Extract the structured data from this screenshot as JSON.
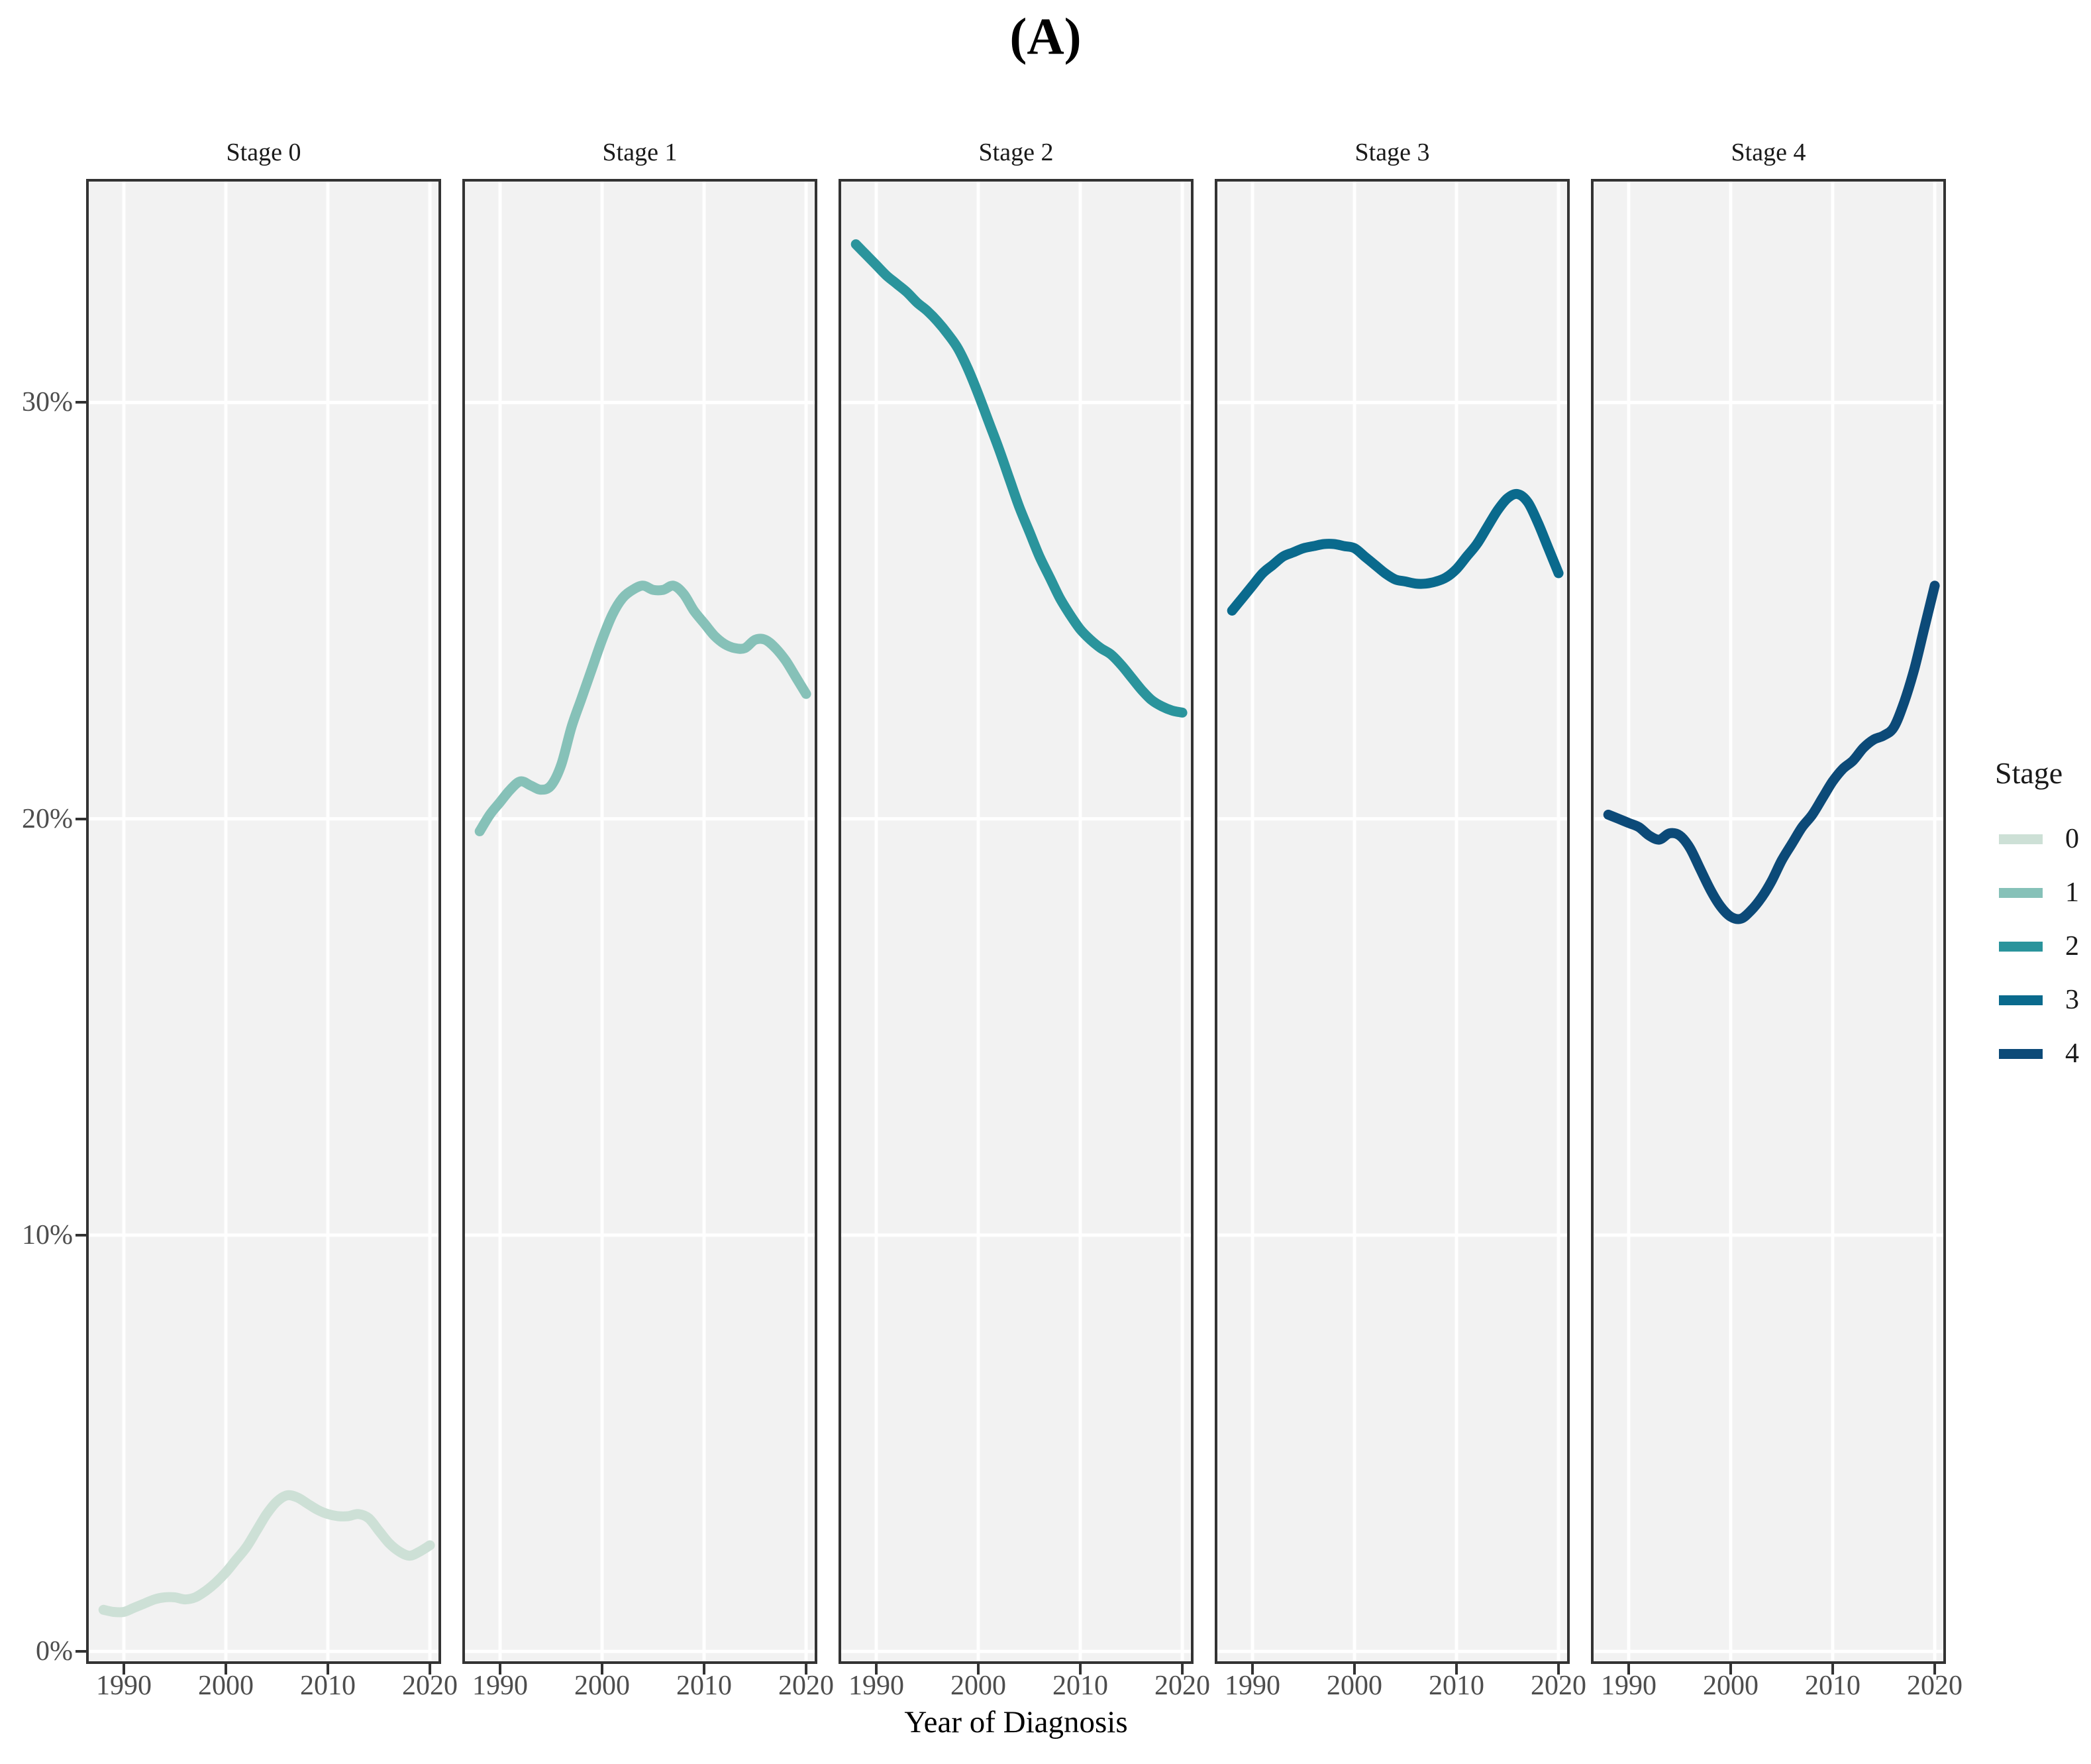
{
  "title": "(A)",
  "chart_data": {
    "type": "line",
    "facets": [
      "Stage 0",
      "Stage 1",
      "Stage 2",
      "Stage 3",
      "Stage 4"
    ],
    "x_label": "Year of Diagnosis",
    "xlabel": "Year of Diagnosis",
    "ylabel": "",
    "x": [
      1988,
      1989,
      1990,
      1991,
      1992,
      1993,
      1994,
      1995,
      1996,
      1997,
      1998,
      1999,
      2000,
      2001,
      2002,
      2003,
      2004,
      2005,
      2006,
      2007,
      2008,
      2009,
      2010,
      2011,
      2012,
      2013,
      2014,
      2015,
      2016,
      2017,
      2018,
      2019,
      2020
    ],
    "series": [
      {
        "name": "0",
        "facet": "Stage 0",
        "color": "#cde0d6",
        "values": [
          1.0,
          0.95,
          0.95,
          1.05,
          1.15,
          1.25,
          1.3,
          1.3,
          1.25,
          1.3,
          1.45,
          1.65,
          1.9,
          2.2,
          2.5,
          2.9,
          3.3,
          3.6,
          3.75,
          3.7,
          3.55,
          3.4,
          3.3,
          3.25,
          3.25,
          3.3,
          3.2,
          2.9,
          2.6,
          2.4,
          2.3,
          2.4,
          2.55
        ]
      },
      {
        "name": "1",
        "facet": "Stage 1",
        "color": "#86c1b8",
        "values": [
          19.7,
          20.1,
          20.4,
          20.7,
          20.9,
          20.8,
          20.7,
          20.8,
          21.3,
          22.2,
          22.9,
          23.6,
          24.3,
          24.9,
          25.3,
          25.5,
          25.6,
          25.5,
          25.5,
          25.6,
          25.4,
          25.0,
          24.7,
          24.4,
          24.2,
          24.1,
          24.1,
          24.3,
          24.3,
          24.1,
          23.8,
          23.4,
          23.0
        ]
      },
      {
        "name": "2",
        "facet": "Stage 2",
        "color": "#2a949c",
        "values": [
          33.8,
          33.55,
          33.3,
          33.05,
          32.85,
          32.65,
          32.4,
          32.2,
          31.95,
          31.65,
          31.3,
          30.8,
          30.2,
          29.55,
          28.9,
          28.2,
          27.5,
          26.9,
          26.3,
          25.8,
          25.3,
          24.9,
          24.55,
          24.3,
          24.1,
          23.95,
          23.7,
          23.4,
          23.1,
          22.85,
          22.7,
          22.6,
          22.55
        ]
      },
      {
        "name": "3",
        "facet": "Stage 3",
        "color": "#0a6a8d",
        "values": [
          25.0,
          25.3,
          25.6,
          25.9,
          26.1,
          26.3,
          26.4,
          26.5,
          26.55,
          26.6,
          26.6,
          26.55,
          26.5,
          26.3,
          26.1,
          25.9,
          25.75,
          25.7,
          25.65,
          25.65,
          25.7,
          25.8,
          26.0,
          26.3,
          26.6,
          27.0,
          27.4,
          27.7,
          27.8,
          27.6,
          27.1,
          26.5,
          25.9
        ]
      },
      {
        "name": "4",
        "facet": "Stage 4",
        "color": "#0c4a78",
        "values": [
          20.1,
          20.0,
          19.9,
          19.8,
          19.6,
          19.5,
          19.65,
          19.6,
          19.3,
          18.8,
          18.3,
          17.9,
          17.65,
          17.6,
          17.8,
          18.1,
          18.5,
          19.0,
          19.4,
          19.8,
          20.1,
          20.5,
          20.9,
          21.2,
          21.4,
          21.7,
          21.9,
          22.0,
          22.2,
          22.8,
          23.6,
          24.6,
          25.6
        ]
      }
    ],
    "x_ticks": [
      1990,
      2000,
      2010,
      2020
    ],
    "y_ticks": [
      {
        "value": 0,
        "label": "0%"
      },
      {
        "value": 10,
        "label": "10%"
      },
      {
        "value": 20,
        "label": "20%"
      },
      {
        "value": 30,
        "label": "30%"
      }
    ],
    "xlim": [
      1986.3,
      2021.1
    ],
    "ylim": [
      -0.3,
      35.37
    ],
    "grid": true,
    "legend": {
      "title": "Stage",
      "position": "right",
      "entries": [
        {
          "label": "0",
          "color": "#cde0d6"
        },
        {
          "label": "1",
          "color": "#86c1b8"
        },
        {
          "label": "2",
          "color": "#2a949c"
        },
        {
          "label": "3",
          "color": "#0a6a8d"
        },
        {
          "label": "4",
          "color": "#0c4a78"
        }
      ]
    }
  },
  "styles": {
    "panel_background": "#f2f2f2",
    "grid_color": "#ffffff",
    "panel_border_color": "#333333",
    "tick_color": "#333333",
    "tick_text_color": "#4d4d4d",
    "title_color": "#000000"
  }
}
